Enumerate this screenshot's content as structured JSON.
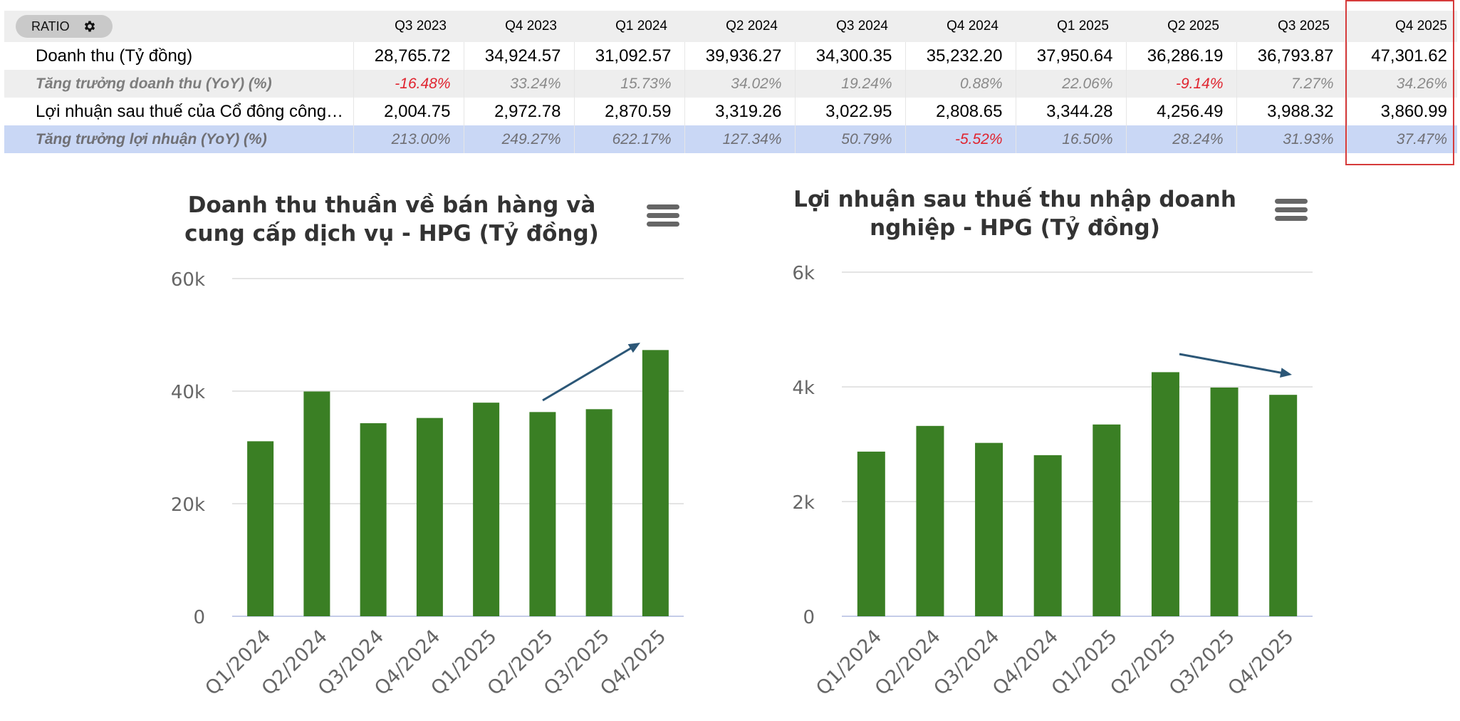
{
  "table": {
    "ratio_label": "RATIO",
    "periods": [
      "Q3 2023",
      "Q4 2023",
      "Q1 2024",
      "Q2 2024",
      "Q3 2024",
      "Q4 2024",
      "Q1 2025",
      "Q2 2025",
      "Q3 2025",
      "Q4 2025"
    ],
    "rows": [
      {
        "label": "Doanh thu (Tỷ đồng)",
        "style": "plain",
        "values": [
          "28,765.72",
          "34,924.57",
          "31,092.57",
          "39,936.27",
          "34,300.35",
          "35,232.20",
          "37,950.64",
          "36,286.19",
          "36,793.87",
          "47,301.62"
        ]
      },
      {
        "label": "Tăng trưởng doanh thu (YoY) (%)",
        "style": "growth",
        "values": [
          "-16.48%",
          "33.24%",
          "15.73%",
          "34.02%",
          "19.24%",
          "0.88%",
          "22.06%",
          "-9.14%",
          "7.27%",
          "34.26%"
        ]
      },
      {
        "label": "Lợi nhuận sau thuế của Cổ đông công…",
        "style": "plain",
        "values": [
          "2,004.75",
          "2,972.78",
          "2,870.59",
          "3,319.26",
          "3,022.95",
          "2,808.65",
          "3,344.28",
          "4,256.49",
          "3,988.32",
          "3,860.99"
        ]
      },
      {
        "label": "Tăng trưởng lợi nhuận (YoY) (%)",
        "style": "growth hl",
        "values": [
          "213.00%",
          "249.27%",
          "622.17%",
          "127.34%",
          "50.79%",
          "-5.52%",
          "16.50%",
          "28.24%",
          "31.93%",
          "37.47%"
        ]
      }
    ],
    "highlight_period": "Q4 2025",
    "colors": {
      "negative": "#e0242f",
      "highlight_row": "#c9d7f5",
      "box": "#d63b3b"
    }
  },
  "chart_data": [
    {
      "type": "bar",
      "title_lines": [
        "Doanh thu thuần về bán hàng và",
        "cung cấp dịch vụ - HPG (Tỷ đồng)"
      ],
      "categories": [
        "Q1/2024",
        "Q2/2024",
        "Q3/2024",
        "Q4/2024",
        "Q1/2025",
        "Q2/2025",
        "Q3/2025",
        "Q4/2025"
      ],
      "values": [
        31093,
        39936,
        34300,
        35232,
        37951,
        36286,
        36794,
        47302
      ],
      "ylim": [
        0,
        60000
      ],
      "yticks": [
        0,
        20000,
        40000,
        60000
      ],
      "ytick_labels": [
        "0",
        "20k",
        "40k",
        "60k"
      ],
      "trend_arrow": "up",
      "grid": true,
      "bar_color": "#3a7f24"
    },
    {
      "type": "bar",
      "title_lines": [
        "Lợi nhuận sau thuế thu nhập doanh",
        "nghiệp - HPG (Tỷ đồng)"
      ],
      "categories": [
        "Q1/2024",
        "Q2/2024",
        "Q3/2024",
        "Q4/2024",
        "Q1/2025",
        "Q2/2025",
        "Q3/2025",
        "Q4/2025"
      ],
      "values": [
        2871,
        3319,
        3023,
        2809,
        3344,
        4256,
        3988,
        3861
      ],
      "ylim": [
        0,
        6000
      ],
      "yticks": [
        0,
        2000,
        4000,
        6000
      ],
      "ytick_labels": [
        "0",
        "2k",
        "4k",
        "6k"
      ],
      "trend_arrow": "down",
      "grid": true,
      "bar_color": "#3a7f24"
    }
  ]
}
